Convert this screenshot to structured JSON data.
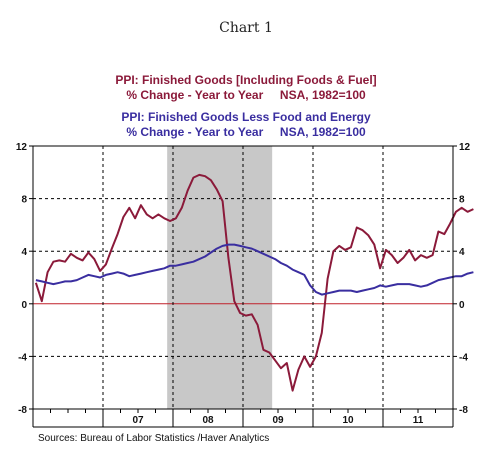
{
  "chart_data": {
    "type": "line",
    "title": "Chart 1",
    "legend": [
      {
        "line1": "PPI: Finished Goods [Including Foods & Fuel]",
        "line2": "% Change - Year to Year     NSA, 1982=100",
        "color": "#8b1a3a"
      },
      {
        "line1": "PPI: Finished Goods Less Food and Energy",
        "line2": "% Change - Year to Year     NSA, 1982=100",
        "color": "#3a2ea0"
      }
    ],
    "source": "Sources:  Bureau of Labor Statistics /Haver Analytics",
    "x_tick_labels": [
      "07",
      "08",
      "09",
      "10",
      "11"
    ],
    "x_tick_years": [
      2007,
      2008,
      2009,
      2010,
      2011
    ],
    "y_ticks": [
      12,
      8,
      4,
      0,
      -4,
      -8
    ],
    "ylim": [
      -8,
      12
    ],
    "xlim": [
      "2006-01",
      "2011-12"
    ],
    "grid": true,
    "recession_shading": {
      "start": "2007-12",
      "end": "2009-06",
      "color": "#c8c8c8"
    },
    "series": [
      {
        "name": "PPI: Finished Goods [Including Foods & Fuel]",
        "color": "#8b1a3a",
        "start": "2006-01",
        "values": [
          1.6,
          0.2,
          2.4,
          3.2,
          3.3,
          3.2,
          3.8,
          3.5,
          3.3,
          3.9,
          3.4,
          2.5,
          3.0,
          4.2,
          5.3,
          6.6,
          7.3,
          6.5,
          7.5,
          6.8,
          6.5,
          6.8,
          6.5,
          6.3,
          6.5,
          7.3,
          8.6,
          9.6,
          9.8,
          9.7,
          9.4,
          8.7,
          7.8,
          3.5,
          0.2,
          -0.7,
          -0.9,
          -0.8,
          -1.6,
          -3.5,
          -3.7,
          -4.3,
          -4.9,
          -4.5,
          -6.6,
          -5.0,
          -4.0,
          -4.8,
          -4.0,
          -2.2,
          1.9,
          4.0,
          4.4,
          4.1,
          4.3,
          5.8,
          5.6,
          5.2,
          4.5,
          2.7,
          4.1,
          3.7,
          3.1,
          3.5,
          4.1,
          3.3,
          3.7,
          3.5,
          3.7,
          5.5,
          5.3,
          6.1,
          7.0,
          7.3,
          7.0,
          7.2
        ]
      },
      {
        "name": "PPI: Finished Goods Less Food and Energy",
        "color": "#3a2ea0",
        "start": "2006-01",
        "values": [
          1.8,
          1.7,
          1.6,
          1.5,
          1.6,
          1.7,
          1.7,
          1.8,
          2.0,
          2.2,
          2.1,
          2.0,
          2.2,
          2.3,
          2.4,
          2.3,
          2.1,
          2.2,
          2.3,
          2.4,
          2.5,
          2.6,
          2.7,
          2.9,
          2.9,
          3.0,
          3.1,
          3.2,
          3.4,
          3.6,
          3.9,
          4.2,
          4.4,
          4.5,
          4.5,
          4.4,
          4.3,
          4.2,
          4.0,
          3.8,
          3.6,
          3.4,
          3.1,
          2.9,
          2.6,
          2.4,
          2.2,
          1.4,
          0.9,
          0.7,
          0.8,
          0.9,
          1.0,
          1.0,
          1.0,
          0.9,
          1.0,
          1.1,
          1.2,
          1.4,
          1.3,
          1.4,
          1.5,
          1.5,
          1.5,
          1.4,
          1.3,
          1.4,
          1.6,
          1.8,
          1.9,
          2.0,
          2.1,
          2.1,
          2.3,
          2.4
        ]
      }
    ]
  }
}
